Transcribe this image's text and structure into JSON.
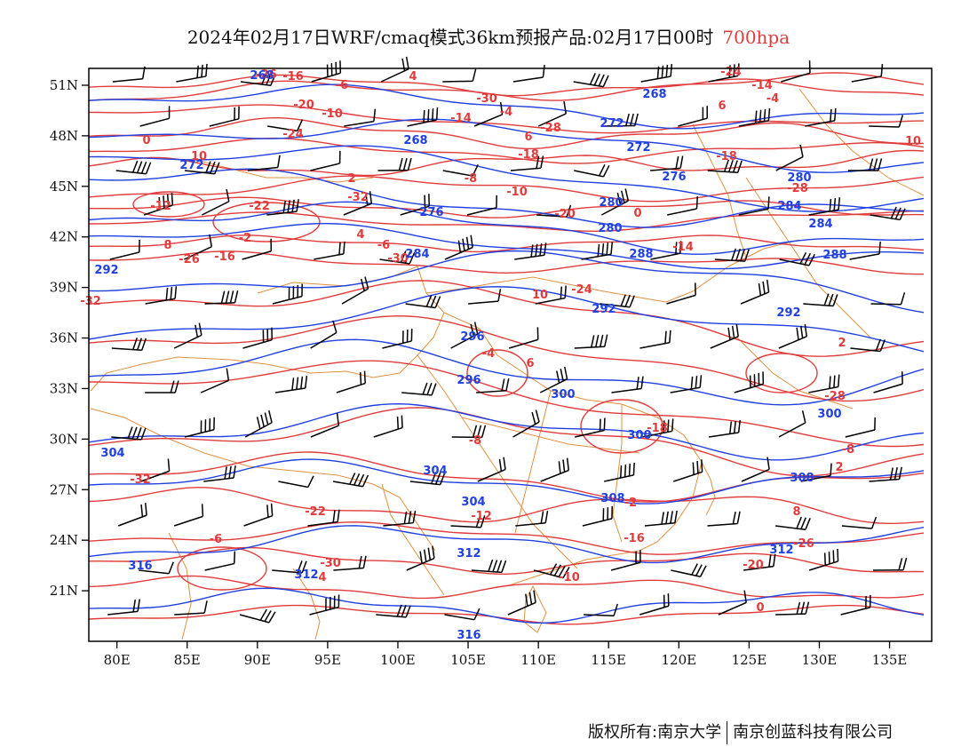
{
  "title": {
    "main": "2024年02月17日WRF/cmaq模式36km预报产品:02月17日00时",
    "level": "700hpa",
    "level_color": "#e03c3c"
  },
  "map": {
    "lon_range": [
      78,
      138
    ],
    "lat_range": [
      18,
      52
    ],
    "lon_ticks": [
      "80E",
      "85E",
      "90E",
      "95E",
      "100E",
      "105E",
      "110E",
      "115E",
      "120E",
      "125E",
      "130E",
      "135E"
    ],
    "lat_ticks": [
      "51N",
      "48N",
      "45N",
      "42N",
      "39N",
      "36N",
      "33N",
      "30N",
      "27N",
      "24N",
      "21N"
    ],
    "colors": {
      "temperature": "#e03c3c",
      "geopotential_height": "#2040e0",
      "boundary": "#e09040",
      "wind_barb": "#000000"
    },
    "temperature_labels": [
      "-32",
      "-30",
      "-28",
      "-26",
      "-24",
      "-22",
      "-20",
      "-18",
      "-16",
      "-14",
      "-12",
      "-10",
      "-8",
      "-6",
      "-4",
      "-2",
      "0",
      "2",
      "4",
      "6",
      "8",
      "10"
    ],
    "height_labels": [
      "268",
      "272",
      "276",
      "280",
      "284",
      "288",
      "292",
      "296",
      "300",
      "304",
      "308",
      "312",
      "316"
    ]
  },
  "footer": {
    "copyright": "版权所有:南京大学",
    "company": "南京创蓝科技有限公司"
  }
}
